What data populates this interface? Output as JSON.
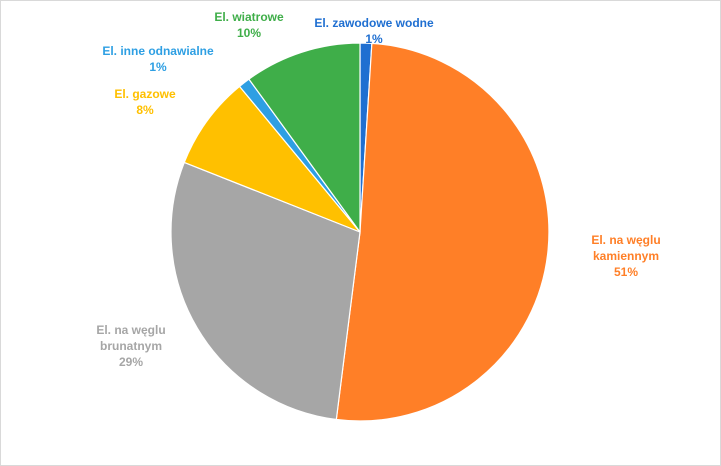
{
  "chart_data": {
    "type": "pie",
    "title": "",
    "slices": [
      {
        "lines": [
          "El. zawodowe  wodne",
          "1%"
        ],
        "value": 1,
        "color": "#1f6fd1"
      },
      {
        "lines": [
          "El. na węglu",
          "kamiennym",
          "51%"
        ],
        "value": 51,
        "color": "#ff7f27"
      },
      {
        "lines": [
          "El. na węglu",
          "brunatnym",
          "29%"
        ],
        "value": 29,
        "color": "#a6a6a6"
      },
      {
        "lines": [
          "El. gazowe",
          "8%"
        ],
        "value": 8,
        "color": "#ffc000"
      },
      {
        "lines": [
          "El. inne odnawialne",
          "1%"
        ],
        "value": 1,
        "color": "#2e9fe3"
      },
      {
        "lines": [
          "El. wiatrowe",
          "10%"
        ],
        "value": 10,
        "color": "#3fae49"
      }
    ],
    "legend": "none",
    "data_labels": "outside"
  }
}
